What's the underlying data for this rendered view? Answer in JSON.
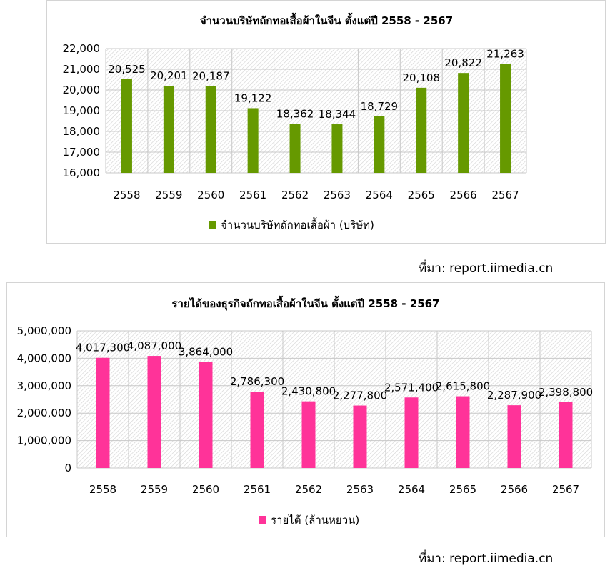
{
  "charts": [
    {
      "chart_data": {
        "type": "bar",
        "title": "จำนวนบริษัทถักทอเสื้อผ้าในจีน ตั้งแต่ปี 2558 - 2567",
        "categories": [
          "2558",
          "2559",
          "2560",
          "2561",
          "2562",
          "2563",
          "2564",
          "2565",
          "2566",
          "2567"
        ],
        "series": [
          {
            "name": "จำนวนบริษัทถักทอเสื้อผ้า (บริษัท)",
            "values": [
              20525,
              20201,
              20187,
              19122,
              18362,
              18344,
              18729,
              20108,
              20822,
              21263
            ],
            "labels": [
              "20,525",
              "20,201",
              "20,187",
              "19,122",
              "18,362",
              "18,344",
              "18,729",
              "20,108",
              "20,822",
              "21,263"
            ],
            "color": "#669900"
          }
        ],
        "ylim": [
          16000,
          22000
        ],
        "yticks": [
          16000,
          17000,
          18000,
          19000,
          20000,
          21000,
          22000
        ],
        "yticklabels": [
          "16,000",
          "17,000",
          "18,000",
          "19,000",
          "20,000",
          "21,000",
          "22,000"
        ],
        "grid": true,
        "legend": "bottom"
      }
    },
    {
      "chart_data": {
        "type": "bar",
        "title": "รายได้ของธุรกิจถักทอเสื้อผ้าในจีน ตั้งแต่ปี 2558 - 2567",
        "categories": [
          "2558",
          "2559",
          "2560",
          "2561",
          "2562",
          "2563",
          "2564",
          "2565",
          "2566",
          "2567"
        ],
        "series": [
          {
            "name": "รายได้ (ล้านหยวน)",
            "values": [
              4017300,
              4087000,
              3864000,
              2786300,
              2430800,
              2277800,
              2571400,
              2615800,
              2287900,
              2398800
            ],
            "labels": [
              "4,017,300",
              "4,087,000",
              "3,864,000",
              "2,786,300",
              "2,430,800",
              "2,277,800",
              "2,571,400",
              "2,615,800",
              "2,287,900",
              "2,398,800"
            ],
            "color": "#ff3399"
          }
        ],
        "ylim": [
          0,
          5000000
        ],
        "yticks": [
          0,
          1000000,
          2000000,
          3000000,
          4000000,
          5000000
        ],
        "yticklabels": [
          "0",
          "1,000,000",
          "2,000,000",
          "3,000,000",
          "4,000,000",
          "5,000,000"
        ],
        "grid": true,
        "legend": "bottom"
      }
    }
  ],
  "sources": [
    "ที่มา: report.iimedia.cn",
    "ที่มา: report.iimedia.cn"
  ]
}
